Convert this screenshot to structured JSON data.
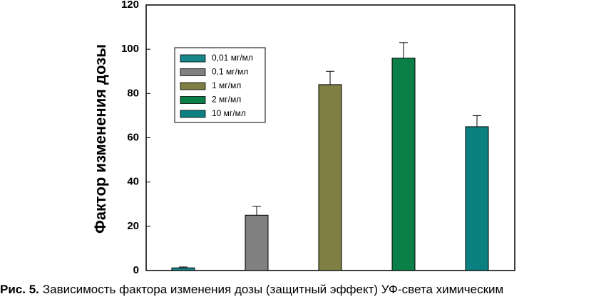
{
  "chart_data": {
    "type": "bar",
    "y_label": "Фактор изменения дозы",
    "caption_label": "Рис. 5.",
    "caption": "Зависимость фактора изменения дозы (защитный эффект) УФ-света химическим",
    "series": [
      {
        "name": "0,01 мг/мл",
        "color": "#17868a",
        "values": [
          1.2
        ],
        "errors": [
          0.4
        ]
      },
      {
        "name": "0,1 мг/мл",
        "color": "#808080",
        "values": [
          25
        ],
        "errors": [
          4
        ]
      },
      {
        "name": "1 мг/мл",
        "color": "#7f7f44",
        "values": [
          84
        ],
        "errors": [
          6
        ]
      },
      {
        "name": "2 мг/мл",
        "color": "#0a8048",
        "values": [
          96
        ],
        "errors": [
          7
        ]
      },
      {
        "name": "10 мг/мл",
        "color": "#0b8080",
        "values": [
          65
        ],
        "errors": [
          5
        ]
      }
    ],
    "ylim": [
      0,
      120
    ],
    "yticks": [
      0,
      20,
      40,
      60,
      80,
      100,
      120
    ]
  }
}
